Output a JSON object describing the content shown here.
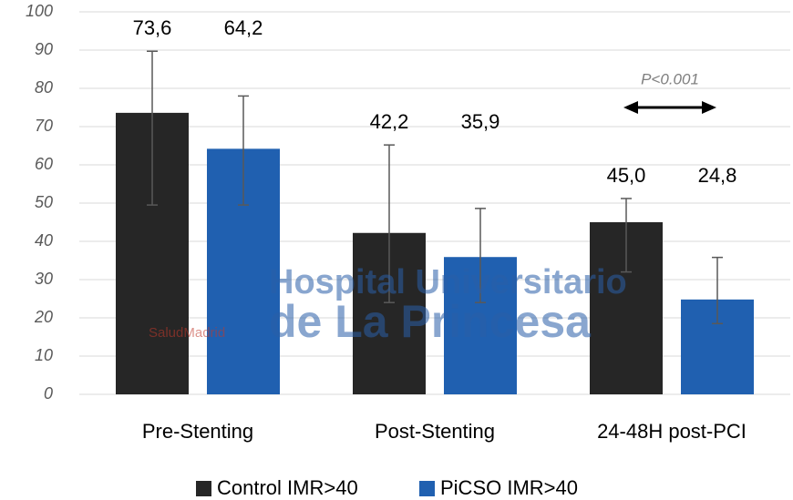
{
  "chart_data": {
    "type": "bar",
    "categories": [
      "Pre-Stenting",
      "Post-Stenting",
      "24-48H post-PCI"
    ],
    "series": [
      {
        "name": "Control IMR>40",
        "color": "#262626",
        "values": [
          73.6,
          42.2,
          45.0
        ],
        "value_labels": [
          "73,6",
          "42,2",
          "45,0"
        ],
        "error_low": [
          24.1,
          18.2,
          13.0
        ],
        "error_high": [
          16.1,
          23.0,
          6.2
        ]
      },
      {
        "name": "PiCSO IMR>40",
        "color": "#2060b0",
        "values": [
          64.2,
          35.9,
          24.8
        ],
        "value_labels": [
          "64,2",
          "35,9",
          "24,8"
        ],
        "error_low": [
          14.7,
          11.9,
          6.3
        ],
        "error_high": [
          13.8,
          12.7,
          11.0
        ]
      }
    ],
    "ylim": [
      0,
      100
    ],
    "yticks": [
      0,
      10,
      20,
      30,
      40,
      50,
      60,
      70,
      80,
      90,
      100
    ],
    "grid": true,
    "annotation": "P<0.001",
    "watermark": [
      "Hospital Universitario",
      "de La Princesa",
      "SaludMadrid"
    ],
    "legend": "bottom"
  }
}
